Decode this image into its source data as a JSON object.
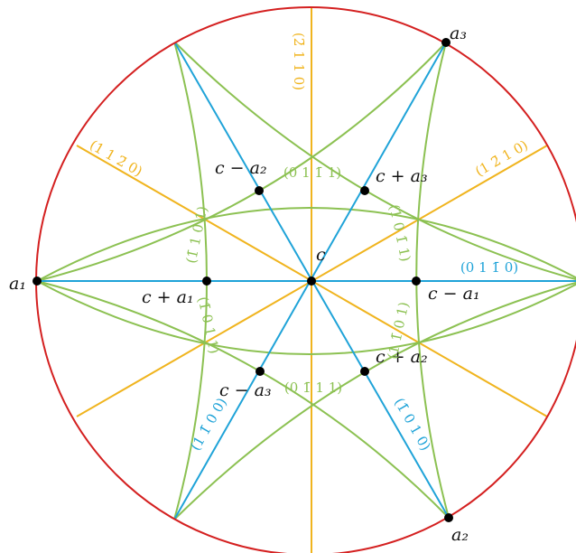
{
  "points": {
    "c": "c",
    "c_plus_a1": "c + a₁",
    "c_minus_a1": "c − a₁",
    "c_minus_a2": "c − a₂",
    "c_plus_a3": "c + a₃",
    "c_minus_a3": "c − a₃",
    "c_plus_a2": "c + a₂",
    "a1": "a₁",
    "a2": "a₂",
    "a3": "a₃"
  },
  "planes": {
    "yellow_top": "(2̄ 1 1 0)",
    "yellow_left": "(1 1 2̄ 0)",
    "yellow_right": "(1 2̄ 1 0)",
    "blue_right": "(0 1 1̄ 0)",
    "blue_lower_left": "(1 1̄ 0 0)",
    "blue_lower_right": "(1̄ 0 1 0)",
    "green_top": "(0 1 1̄ 1)",
    "green_bottom": "(0 1̄ 1 1)",
    "green_upper_left": "(1̄ 1 0 1)",
    "green_upper_right": "(1 0 1̄ 1)",
    "green_lower_left": "(1̄ 0 1 1)",
    "green_lower_right": "(1 1̄ 0 1)"
  }
}
